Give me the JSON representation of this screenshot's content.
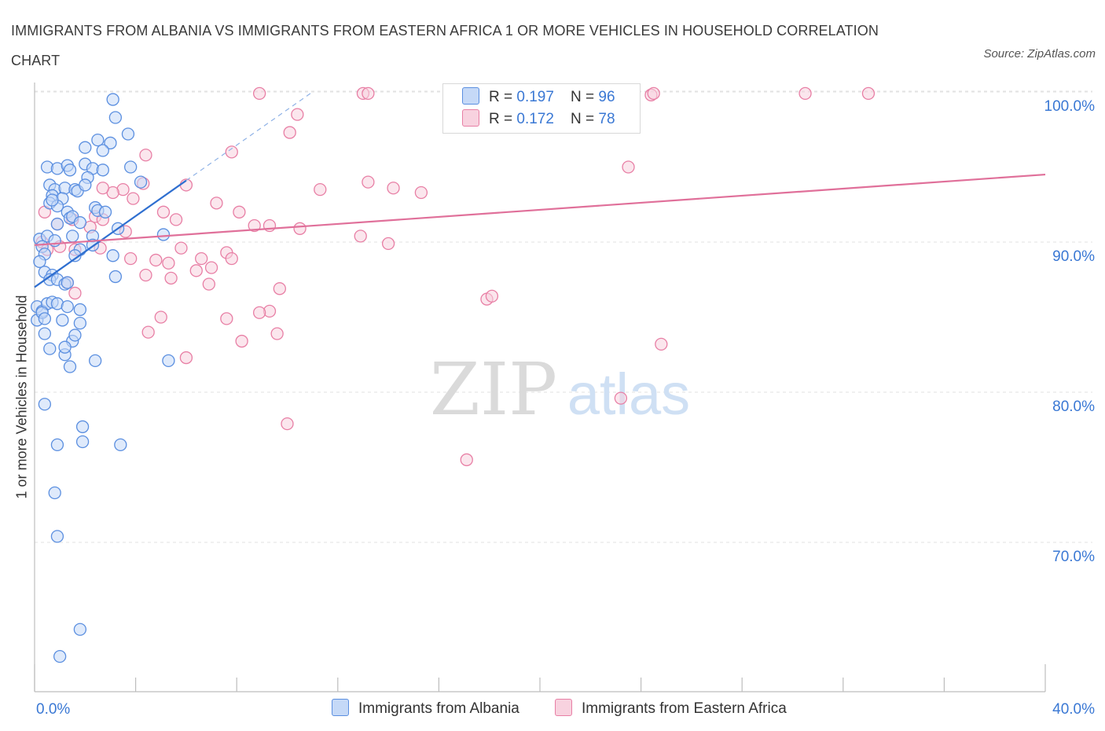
{
  "title": "IMMIGRANTS FROM ALBANIA VS IMMIGRANTS FROM EASTERN AFRICA 1 OR MORE VEHICLES IN HOUSEHOLD CORRELATION CHART",
  "source": "Source: ZipAtlas.com",
  "watermark": {
    "zip": "ZIP",
    "atlas": "atlas"
  },
  "legend": {
    "rows": [
      {
        "r_label": "R = ",
        "r_value": "0.197",
        "n_label": "N = ",
        "n_value": "96"
      },
      {
        "r_label": "R = ",
        "r_value": "0.172",
        "n_label": "N = ",
        "n_value": "78"
      }
    ]
  },
  "chart_data": {
    "type": "scatter",
    "title": "IMMIGRANTS FROM ALBANIA VS IMMIGRANTS FROM EASTERN AFRICA 1 OR MORE VEHICLES IN HOUSEHOLD CORRELATION CHART",
    "xlabel": "",
    "ylabel": "1 or more Vehicles in Household",
    "xlim": [
      0,
      40
    ],
    "ylim": [
      60,
      101
    ],
    "x_tick_labels": [
      "0.0%",
      "40.0%"
    ],
    "y_ticks": [
      70,
      80,
      90,
      100
    ],
    "y_tick_labels": [
      "70.0%",
      "80.0%",
      "90.0%",
      "100.0%"
    ],
    "grid": true,
    "colors": {
      "albania": "#5b8fe0",
      "albania_fill": "#c5d9f7",
      "eafrica": "#e87fa5",
      "eafrica_fill": "#f8d2df",
      "axis_text": "#3a78d4"
    },
    "series": [
      {
        "name": "Immigrants from Albania",
        "r": 0.197,
        "n": 96,
        "trend": {
          "x0": 0.0,
          "y0": 87.0,
          "x1": 6.0,
          "y1": 94.1,
          "dash_to_x": 11.0,
          "dash_to_y": 100.0
        },
        "points": [
          [
            3.1,
            99.5
          ],
          [
            3.2,
            98.3
          ],
          [
            3.7,
            97.2
          ],
          [
            2.5,
            96.8
          ],
          [
            2.0,
            96.3
          ],
          [
            3.0,
            96.6
          ],
          [
            2.7,
            96.1
          ],
          [
            0.5,
            95.0
          ],
          [
            0.9,
            94.9
          ],
          [
            1.3,
            95.1
          ],
          [
            1.4,
            94.8
          ],
          [
            2.0,
            95.2
          ],
          [
            2.3,
            94.9
          ],
          [
            2.7,
            94.8
          ],
          [
            3.8,
            95.0
          ],
          [
            0.6,
            93.8
          ],
          [
            0.8,
            93.5
          ],
          [
            1.2,
            93.6
          ],
          [
            0.7,
            93.1
          ],
          [
            1.6,
            93.5
          ],
          [
            1.7,
            93.4
          ],
          [
            2.1,
            94.3
          ],
          [
            2.0,
            93.8
          ],
          [
            4.2,
            94.0
          ],
          [
            0.6,
            92.6
          ],
          [
            1.1,
            92.9
          ],
          [
            0.9,
            92.4
          ],
          [
            0.7,
            92.8
          ],
          [
            1.3,
            92.0
          ],
          [
            2.4,
            92.3
          ],
          [
            2.5,
            92.1
          ],
          [
            2.8,
            92.0
          ],
          [
            1.4,
            91.6
          ],
          [
            1.5,
            91.7
          ],
          [
            1.8,
            91.3
          ],
          [
            0.9,
            91.2
          ],
          [
            3.3,
            90.9
          ],
          [
            2.3,
            90.4
          ],
          [
            0.2,
            90.2
          ],
          [
            0.5,
            90.4
          ],
          [
            0.8,
            90.1
          ],
          [
            1.5,
            90.4
          ],
          [
            0.3,
            89.7
          ],
          [
            0.4,
            89.2
          ],
          [
            1.8,
            89.5
          ],
          [
            2.3,
            89.8
          ],
          [
            1.6,
            89.1
          ],
          [
            3.1,
            89.1
          ],
          [
            5.1,
            90.5
          ],
          [
            0.2,
            88.7
          ],
          [
            0.4,
            88.0
          ],
          [
            0.7,
            87.8
          ],
          [
            0.6,
            87.5
          ],
          [
            0.9,
            87.5
          ],
          [
            1.2,
            87.2
          ],
          [
            1.3,
            87.3
          ],
          [
            3.2,
            87.7
          ],
          [
            0.1,
            85.7
          ],
          [
            0.3,
            85.4
          ],
          [
            0.5,
            85.9
          ],
          [
            0.7,
            86.0
          ],
          [
            0.9,
            85.9
          ],
          [
            1.3,
            85.7
          ],
          [
            1.8,
            85.5
          ],
          [
            0.1,
            84.8
          ],
          [
            0.3,
            85.3
          ],
          [
            0.4,
            84.9
          ],
          [
            1.1,
            84.8
          ],
          [
            1.8,
            84.6
          ],
          [
            0.4,
            83.9
          ],
          [
            1.5,
            83.4
          ],
          [
            1.6,
            83.8
          ],
          [
            0.6,
            82.9
          ],
          [
            1.2,
            82.5
          ],
          [
            1.2,
            83.0
          ],
          [
            1.4,
            81.7
          ],
          [
            2.4,
            82.1
          ],
          [
            5.3,
            82.1
          ],
          [
            0.4,
            79.2
          ],
          [
            1.9,
            77.7
          ],
          [
            0.9,
            76.5
          ],
          [
            1.9,
            76.7
          ],
          [
            3.4,
            76.5
          ],
          [
            0.8,
            73.3
          ],
          [
            0.9,
            70.4
          ],
          [
            1.8,
            64.2
          ],
          [
            1.0,
            62.4
          ]
        ]
      },
      {
        "name": "Immigrants from Eastern Africa",
        "r": 0.172,
        "n": 78,
        "trend": {
          "x0": 0.0,
          "y0": 89.8,
          "x1": 40.0,
          "y1": 94.5
        },
        "points": [
          [
            8.9,
            99.9
          ],
          [
            13.0,
            99.9
          ],
          [
            13.2,
            99.9
          ],
          [
            23.4,
            99.8
          ],
          [
            24.4,
            99.8
          ],
          [
            24.5,
            99.9
          ],
          [
            30.5,
            99.9
          ],
          [
            33.0,
            99.9
          ],
          [
            10.4,
            98.5
          ],
          [
            10.1,
            97.3
          ],
          [
            7.8,
            96.0
          ],
          [
            4.4,
            95.8
          ],
          [
            23.5,
            95.0
          ],
          [
            6.0,
            93.8
          ],
          [
            11.3,
            93.5
          ],
          [
            13.2,
            94.0
          ],
          [
            14.2,
            93.6
          ],
          [
            15.3,
            93.3
          ],
          [
            4.3,
            93.9
          ],
          [
            3.5,
            93.5
          ],
          [
            3.1,
            93.3
          ],
          [
            2.7,
            93.6
          ],
          [
            3.9,
            92.9
          ],
          [
            7.2,
            92.6
          ],
          [
            8.1,
            92.0
          ],
          [
            5.1,
            92.0
          ],
          [
            5.6,
            91.5
          ],
          [
            2.4,
            91.7
          ],
          [
            2.7,
            91.5
          ],
          [
            3.6,
            90.7
          ],
          [
            2.2,
            91.0
          ],
          [
            1.5,
            91.5
          ],
          [
            8.7,
            91.1
          ],
          [
            9.3,
            91.1
          ],
          [
            10.5,
            90.9
          ],
          [
            12.9,
            90.4
          ],
          [
            14.0,
            89.9
          ],
          [
            0.4,
            92.0
          ],
          [
            0.9,
            91.2
          ],
          [
            0.3,
            90.0
          ],
          [
            0.5,
            89.5
          ],
          [
            1.0,
            89.7
          ],
          [
            1.6,
            89.5
          ],
          [
            2.6,
            89.6
          ],
          [
            5.8,
            89.6
          ],
          [
            3.8,
            88.9
          ],
          [
            4.8,
            88.8
          ],
          [
            6.6,
            88.9
          ],
          [
            6.4,
            88.1
          ],
          [
            7.6,
            89.3
          ],
          [
            7.8,
            88.9
          ],
          [
            5.3,
            88.6
          ],
          [
            7.0,
            88.3
          ],
          [
            4.4,
            87.8
          ],
          [
            5.4,
            87.6
          ],
          [
            6.9,
            87.2
          ],
          [
            9.7,
            86.9
          ],
          [
            1.3,
            87.3
          ],
          [
            1.6,
            86.6
          ],
          [
            17.9,
            86.2
          ],
          [
            18.1,
            86.4
          ],
          [
            9.3,
            85.4
          ],
          [
            8.9,
            85.3
          ],
          [
            5.0,
            85.0
          ],
          [
            7.6,
            84.9
          ],
          [
            4.5,
            84.0
          ],
          [
            8.2,
            83.4
          ],
          [
            9.6,
            83.9
          ],
          [
            24.8,
            83.2
          ],
          [
            6.0,
            82.3
          ],
          [
            23.2,
            79.6
          ],
          [
            10.0,
            77.9
          ],
          [
            17.1,
            75.5
          ]
        ]
      }
    ]
  },
  "bottom_legend": [
    "Immigrants from Albania",
    "Immigrants from Eastern Africa"
  ]
}
